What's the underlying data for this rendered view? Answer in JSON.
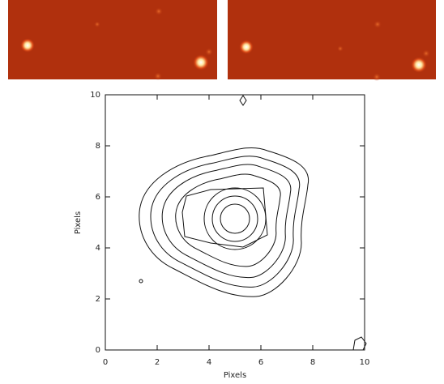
{
  "chart_data": {
    "type": "contour",
    "xlabel": "Pixels",
    "ylabel": "Pixels",
    "xlim": [
      0,
      10
    ],
    "ylim": [
      0,
      10
    ],
    "xticks": [
      0,
      2,
      4,
      6,
      8,
      10
    ],
    "yticks": [
      0,
      2,
      4,
      6,
      8,
      10
    ]
  }
}
